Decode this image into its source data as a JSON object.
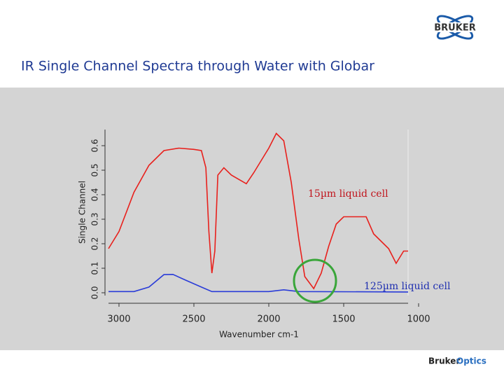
{
  "slide": {
    "title": "IR Single Channel Spectra through Water with Globar",
    "logo": "BRUKER",
    "footer_company": "Bruker",
    "footer_division": "Optics"
  },
  "chart_data": {
    "type": "line",
    "xlabel": "Wavenumber cm-1",
    "ylabel": "Single Channel",
    "xlim": [
      3070,
      1000
    ],
    "xticks": [
      3000,
      2500,
      2000,
      1500,
      1000
    ],
    "ylim": [
      0,
      0.66
    ],
    "yticks": [
      {
        "value": 0,
        "label": "0.0"
      },
      0.1,
      0.2,
      0.3,
      0.4,
      0.5,
      0.6
    ],
    "grid": false,
    "annotations": [
      "15µm liquid cell",
      "125µm liquid cell"
    ],
    "series": [
      {
        "name": "15µm liquid cell",
        "color": "#e8201c",
        "x": [
          3070,
          3000,
          2900,
          2800,
          2700,
          2600,
          2500,
          2450,
          2420,
          2400,
          2380,
          2360,
          2340,
          2300,
          2250,
          2150,
          2100,
          2000,
          1950,
          1900,
          1850,
          1800,
          1760,
          1700,
          1650,
          1600,
          1550,
          1500,
          1400,
          1350,
          1300,
          1250,
          1200,
          1150,
          1100,
          1070
        ],
        "values": [
          0.18,
          0.25,
          0.41,
          0.52,
          0.58,
          0.59,
          0.585,
          0.58,
          0.51,
          0.25,
          0.08,
          0.17,
          0.48,
          0.51,
          0.48,
          0.445,
          0.49,
          0.59,
          0.65,
          0.62,
          0.45,
          0.22,
          0.066,
          0.017,
          0.08,
          0.19,
          0.28,
          0.31,
          0.31,
          0.31,
          0.24,
          0.21,
          0.18,
          0.12,
          0.17,
          0.17
        ]
      },
      {
        "name": "125µm liquid cell",
        "color": "#2a3cd8",
        "x": [
          3070,
          2900,
          2800,
          2700,
          2640,
          2550,
          2450,
          2380,
          2000,
          1900,
          1800,
          1070
        ],
        "values": [
          0.005,
          0.005,
          0.023,
          0.074,
          0.075,
          0.05,
          0.023,
          0.005,
          0.005,
          0.012,
          0.005,
          0.003
        ]
      }
    ]
  }
}
